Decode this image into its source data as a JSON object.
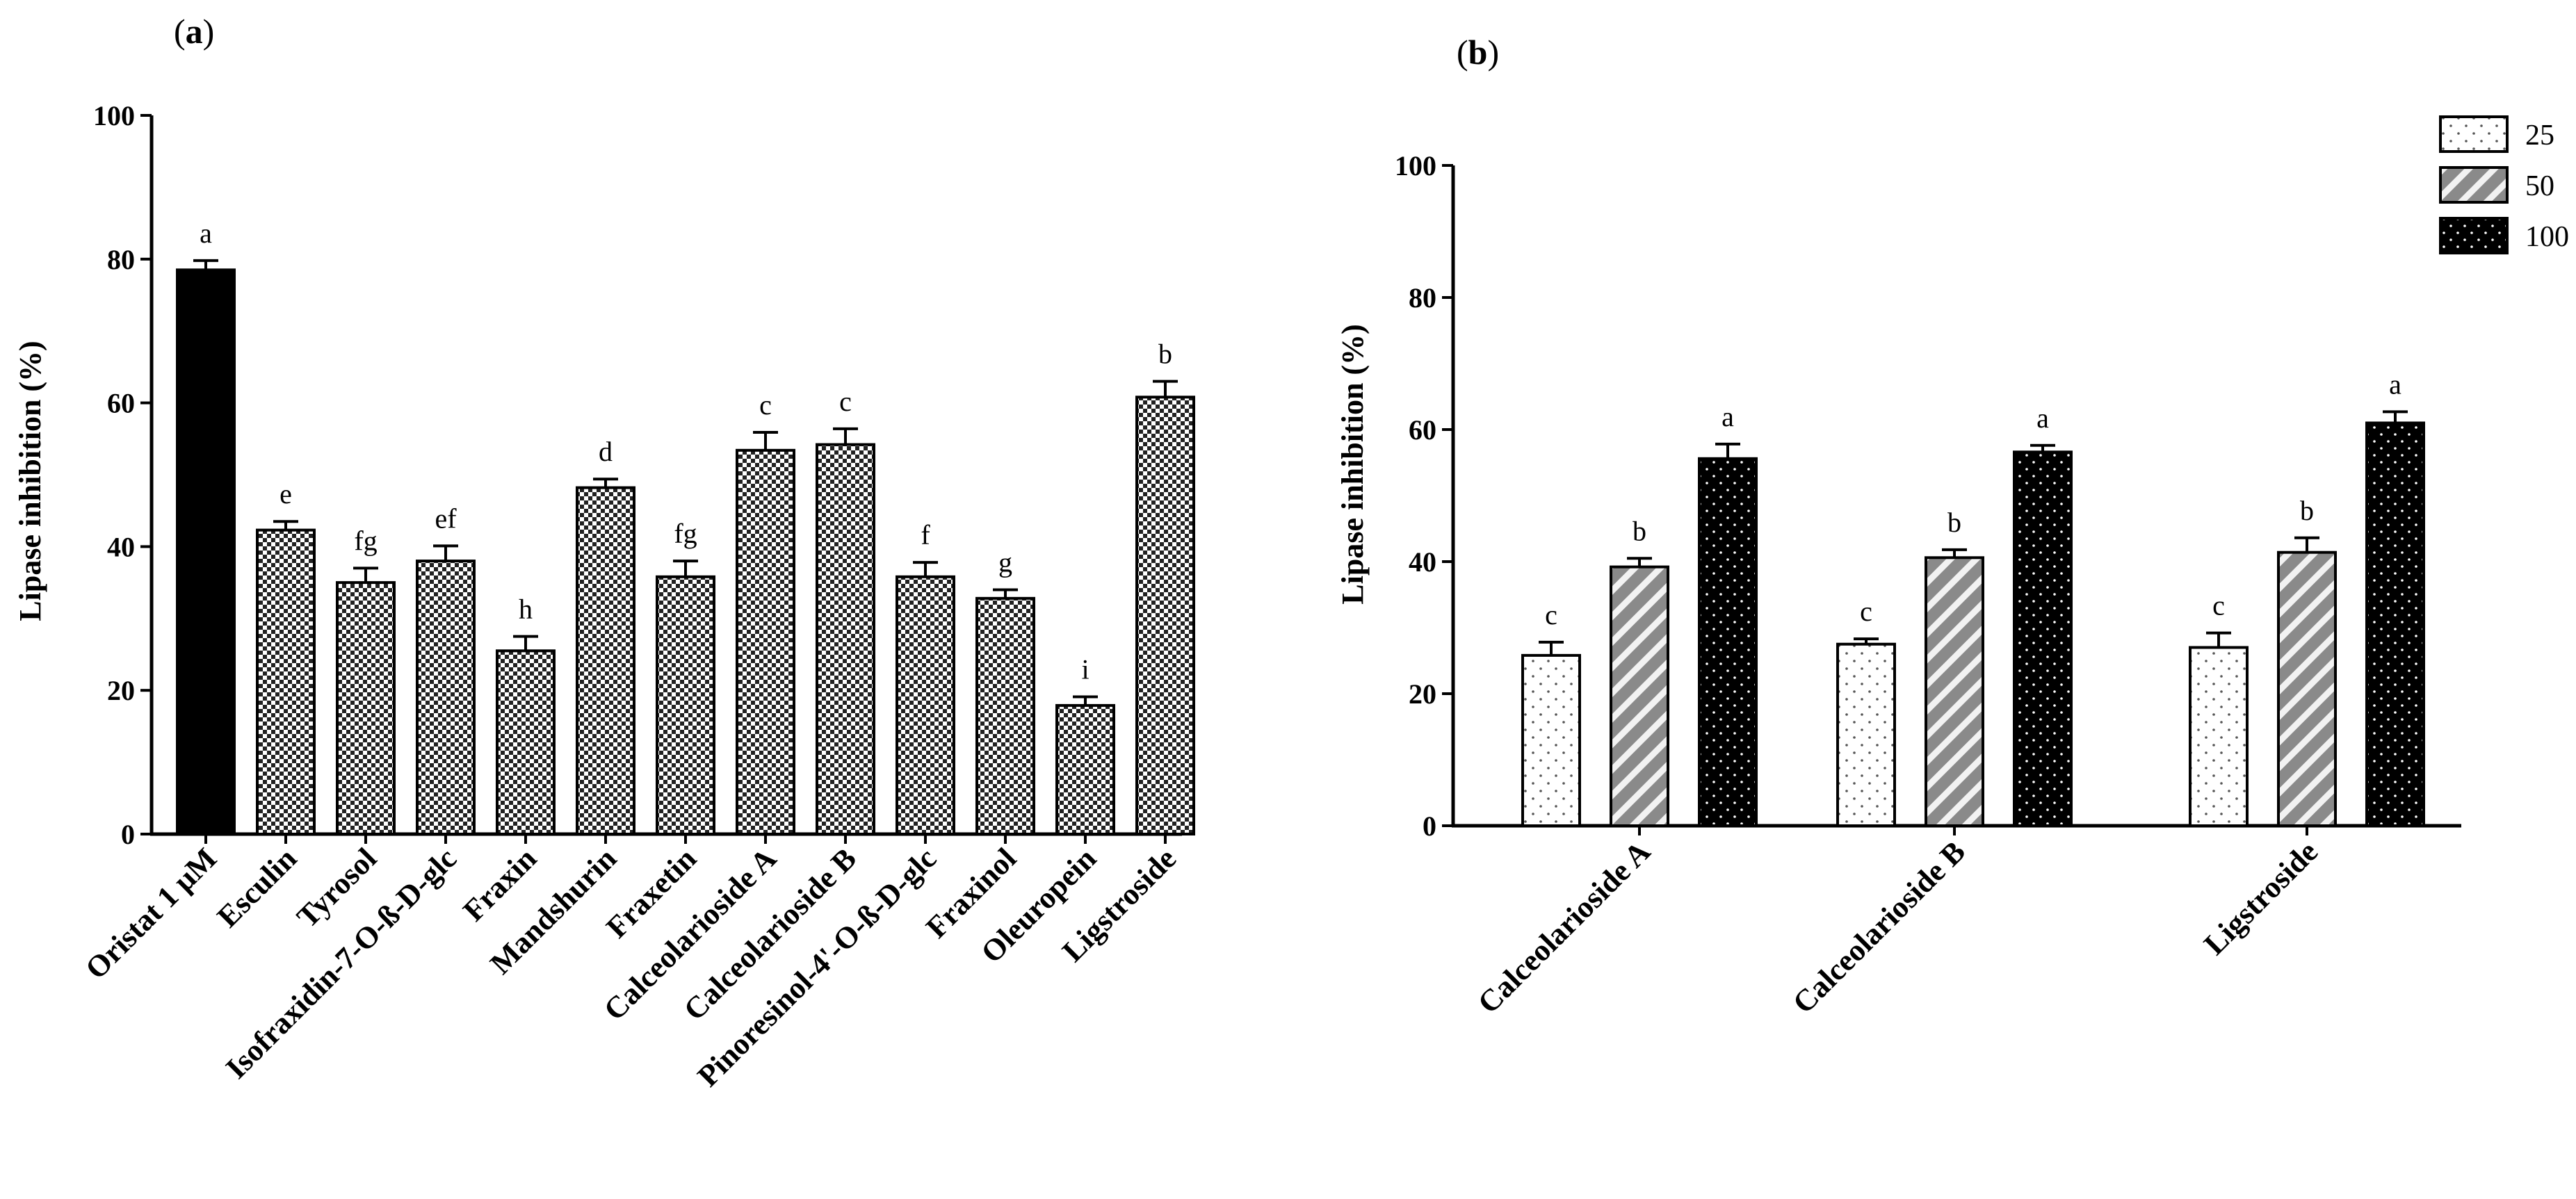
{
  "chart_data": [
    {
      "type": "bar",
      "panel_label": "(a)",
      "title": "",
      "xlabel": "",
      "ylabel": "Lipase inhibition (%)",
      "ylim": [
        0,
        100
      ],
      "yticks": [
        "0",
        "20",
        "40",
        "60",
        "80",
        "100"
      ],
      "categories": [
        "Oristat 1 μM",
        "Esculin",
        "Tyrosol",
        "Isofraxidin-7-O-ß-D-glc",
        "Fraxin",
        "Mandshurin",
        "Fraxetin",
        "Calceolarioside A",
        "Calceolarioside B",
        "Pinoresinol-4'-O-ß-D-glc",
        "Fraxinol",
        "Oleuropein",
        "Ligstroside"
      ],
      "values": [
        78.5,
        42.3,
        35.0,
        38.0,
        25.5,
        48.2,
        35.8,
        53.4,
        54.2,
        35.8,
        32.8,
        17.9,
        60.8
      ],
      "errors": [
        1.3,
        1.2,
        2.0,
        2.1,
        2.0,
        1.2,
        2.2,
        2.5,
        2.2,
        2.0,
        1.2,
        1.2,
        2.2
      ],
      "significance": [
        "a",
        "e",
        "fg",
        "ef",
        "h",
        "d",
        "fg",
        "c",
        "c",
        "f",
        "g",
        "i",
        "b"
      ],
      "colors": {
        "control": "#000000",
        "compound": "checkered"
      }
    },
    {
      "type": "bar",
      "panel_label": "(b)",
      "title": "",
      "xlabel": "",
      "ylabel": "Lipase inhibition (%)",
      "ylim": [
        0,
        100
      ],
      "yticks": [
        "0",
        "20",
        "40",
        "60",
        "80",
        "100"
      ],
      "categories": [
        "Calceolarioside A",
        "Calceolarioside B",
        "Ligstroside"
      ],
      "series": [
        {
          "name": "25",
          "values": [
            25.8,
            27.5,
            27.0
          ],
          "errors": [
            2.0,
            0.8,
            2.2
          ],
          "significance": [
            "c",
            "c",
            "c"
          ]
        },
        {
          "name": "50",
          "values": [
            39.2,
            40.6,
            41.4
          ],
          "errors": [
            1.3,
            1.2,
            2.2
          ],
          "significance": [
            "b",
            "b",
            "b"
          ]
        },
        {
          "name": "100",
          "values": [
            55.6,
            56.6,
            61.0
          ],
          "errors": [
            2.2,
            1.0,
            1.7
          ],
          "significance": [
            "a",
            "a",
            "a"
          ]
        }
      ],
      "legend_position": "top-right"
    }
  ]
}
